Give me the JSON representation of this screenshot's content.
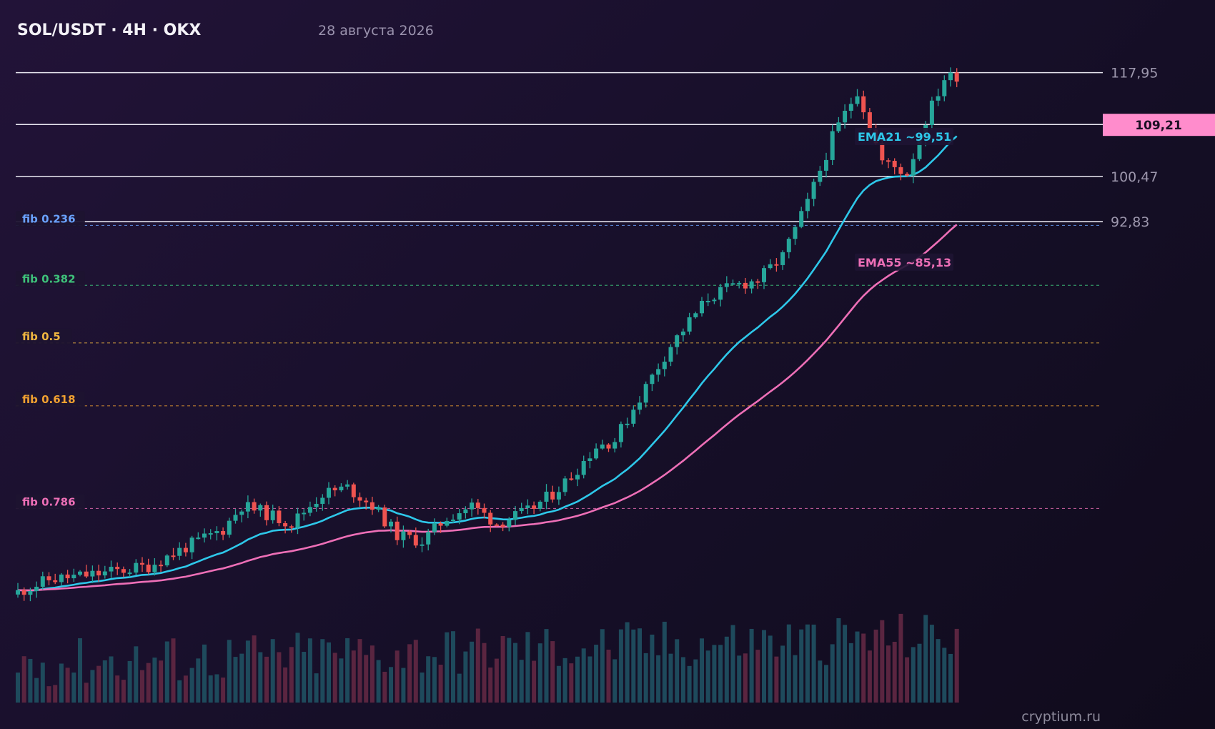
{
  "header": {
    "title": "SOL/USDT · 4H · OKX",
    "date": "28 августа 2026"
  },
  "watermark": "cryptium.ru",
  "colors": {
    "up": "#26a69a",
    "down": "#ef5350",
    "ema21": "#2ec8ea",
    "ema55": "#ee6fb7",
    "price_tag": "#ff8ccc",
    "level_line": "#e6e4ee",
    "volume_up": "#1e4a5c",
    "volume_down": "#5a2540"
  },
  "chart_data": {
    "type": "candlestick",
    "title": "SOL/USDT · 4H · OKX",
    "ylim": [
      29.5,
      122
    ],
    "levels": [
      117.95,
      100.47,
      92.83
    ],
    "current_price": {
      "value": 109.21,
      "label": "109,21"
    },
    "level_labels": [
      "117,95",
      "100,47",
      "92,83"
    ],
    "fibs": [
      {
        "label": "fib 0.236",
        "price": 92.2,
        "color": "#6aa2ff"
      },
      {
        "label": "fib 0.382",
        "price": 82.1,
        "color": "#3ec27a"
      },
      {
        "label": "fib 0.5",
        "price": 72.4,
        "color": "#f0b640"
      },
      {
        "label": "fib 0.618",
        "price": 61.8,
        "color": "#f0a030"
      },
      {
        "label": "fib 0.786",
        "price": 44.5,
        "color": "#ee6fb7"
      }
    ],
    "ema21": {
      "label": "EMA21 ~99,51",
      "value": 99.51
    },
    "ema55": {
      "label": "EMA55 ~85,13",
      "value": 85.13
    },
    "anchors": [
      [
        0,
        30
      ],
      [
        6,
        32.5
      ],
      [
        14,
        33.5
      ],
      [
        22,
        34.8
      ],
      [
        28,
        38
      ],
      [
        34,
        41
      ],
      [
        37,
        45
      ],
      [
        40,
        44
      ],
      [
        45,
        42
      ],
      [
        50,
        47
      ],
      [
        54,
        48
      ],
      [
        58,
        45
      ],
      [
        62,
        40
      ],
      [
        66,
        39
      ],
      [
        70,
        43
      ],
      [
        74,
        45
      ],
      [
        78,
        42
      ],
      [
        83,
        44
      ],
      [
        87,
        47
      ],
      [
        90,
        50
      ],
      [
        94,
        55
      ],
      [
        97,
        56
      ],
      [
        102,
        65
      ],
      [
        106,
        72
      ],
      [
        112,
        80
      ],
      [
        116,
        82
      ],
      [
        120,
        83
      ],
      [
        124,
        87
      ],
      [
        128,
        96
      ],
      [
        132,
        107
      ],
      [
        136,
        115
      ],
      [
        140,
        103
      ],
      [
        144,
        101
      ],
      [
        147,
        110
      ],
      [
        150,
        117
      ],
      [
        152,
        117.5
      ]
    ],
    "candles_count": 152,
    "seed": 11
  }
}
